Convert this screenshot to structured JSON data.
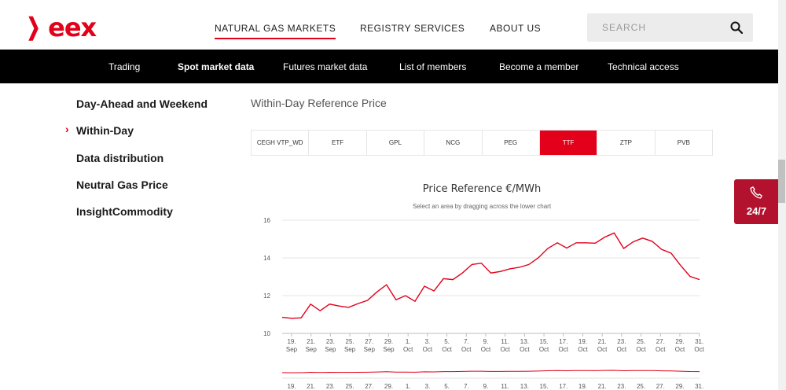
{
  "header": {
    "logo_text": "eex",
    "nav": [
      {
        "label": "NATURAL GAS MARKETS",
        "active": true
      },
      {
        "label": "REGISTRY SERVICES",
        "active": false
      },
      {
        "label": "ABOUT US",
        "active": false
      }
    ],
    "search_placeholder": "SEARCH"
  },
  "subnav": [
    {
      "label": "Trading",
      "active": false
    },
    {
      "label": "Spot market data",
      "active": true
    },
    {
      "label": "Futures market data",
      "active": false
    },
    {
      "label": "List of members",
      "active": false
    },
    {
      "label": "Become a member",
      "active": false
    },
    {
      "label": "Technical access",
      "active": false
    }
  ],
  "sidebar": {
    "items": [
      {
        "label": "Day-Ahead and Weekend",
        "active": false
      },
      {
        "label": "Within-Day",
        "active": true
      },
      {
        "label": "Data distribution",
        "active": false
      },
      {
        "label": "Neutral Gas Price",
        "active": false
      },
      {
        "label": "InsightCommodity",
        "active": false
      }
    ]
  },
  "section_title": "Within-Day Reference Price",
  "tabs": [
    {
      "label": "CEGH VTP_WD",
      "active": false
    },
    {
      "label": "ETF",
      "active": false
    },
    {
      "label": "GPL",
      "active": false
    },
    {
      "label": "NCG",
      "active": false
    },
    {
      "label": "PEG",
      "active": false
    },
    {
      "label": "TTF",
      "active": true
    },
    {
      "label": "ZTP",
      "active": false
    },
    {
      "label": "PVB",
      "active": false
    }
  ],
  "badge": {
    "label": "24/7"
  },
  "colors": {
    "accent": "#e2001a",
    "badge": "#b3122e"
  },
  "chart_data": {
    "type": "line",
    "title": "Price Reference €/MWh",
    "subtitle": "Select an area by dragging across the lower chart",
    "ylim": [
      10,
      16
    ],
    "yticks": [
      10,
      12,
      14,
      16
    ],
    "x_tick_labels": [
      [
        "19.",
        "Sep"
      ],
      [
        "21.",
        "Sep"
      ],
      [
        "23.",
        "Sep"
      ],
      [
        "25.",
        "Sep"
      ],
      [
        "27.",
        "Sep"
      ],
      [
        "29.",
        "Sep"
      ],
      [
        "1.",
        "Oct"
      ],
      [
        "3.",
        "Oct"
      ],
      [
        "5.",
        "Oct"
      ],
      [
        "7.",
        "Oct"
      ],
      [
        "9.",
        "Oct"
      ],
      [
        "11.",
        "Oct"
      ],
      [
        "13.",
        "Oct"
      ],
      [
        "15.",
        "Oct"
      ],
      [
        "17.",
        "Oct"
      ],
      [
        "19.",
        "Oct"
      ],
      [
        "21.",
        "Oct"
      ],
      [
        "23.",
        "Oct"
      ],
      [
        "25.",
        "Oct"
      ],
      [
        "27.",
        "Oct"
      ],
      [
        "29.",
        "Oct"
      ],
      [
        "31.",
        "Oct"
      ]
    ],
    "navigator_tick_labels": [
      "19.",
      "21.",
      "23.",
      "25.",
      "27.",
      "29.",
      "1.",
      "3.",
      "5.",
      "7.",
      "9.",
      "11.",
      "13.",
      "15.",
      "17.",
      "19.",
      "21.",
      "23.",
      "25.",
      "27.",
      "29.",
      "31."
    ],
    "grid": true,
    "series": [
      {
        "values": [
          10.85,
          10.8,
          10.82,
          11.55,
          11.2,
          11.55,
          11.45,
          11.38,
          11.58,
          11.75,
          12.2,
          12.58,
          11.78,
          12.0,
          11.7,
          12.5,
          12.25,
          12.9,
          12.85,
          13.2,
          13.65,
          13.72,
          13.2,
          13.28,
          13.42,
          13.5,
          13.65,
          14.0,
          14.5,
          14.8,
          14.52,
          14.8,
          14.8,
          14.78,
          15.1,
          15.32,
          14.5,
          14.85,
          15.05,
          14.88,
          14.45,
          14.25,
          13.6,
          13.02,
          12.85
        ]
      }
    ]
  }
}
